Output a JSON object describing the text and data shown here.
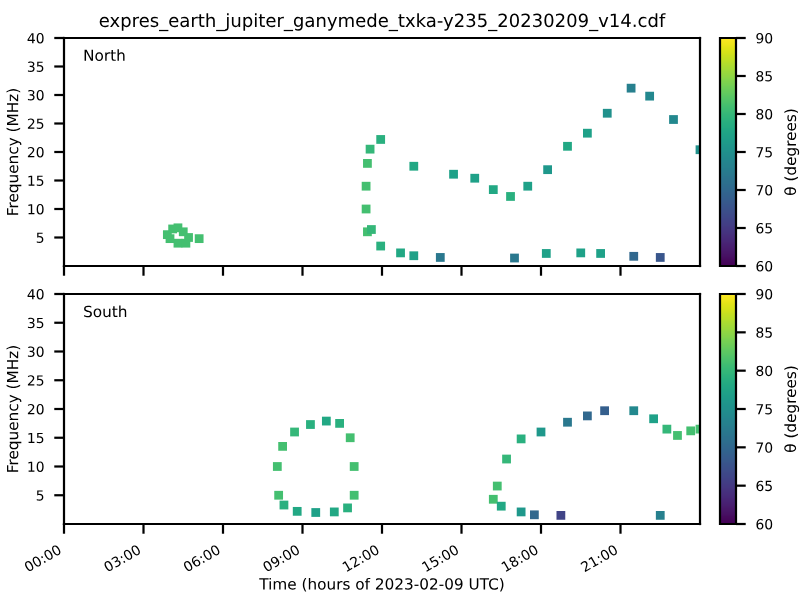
{
  "chart_data": [
    {
      "type": "scatter",
      "title": "expres_earth_jupiter_ganymede_txka-y235_20230209_v14.cdf",
      "ylabel": "Frequency (MHz)",
      "clabel": "θ (degrees)",
      "annotations": [
        "North"
      ],
      "marker": "square",
      "tick_labels": "y",
      "xlim": [
        0,
        24
      ],
      "xticks": [
        0,
        3,
        6,
        9,
        12,
        15,
        18,
        21
      ],
      "ylim": [
        0,
        40
      ],
      "yticks": [
        5,
        10,
        15,
        20,
        25,
        30,
        35,
        40
      ],
      "clim": [
        60,
        90
      ],
      "cticks": [
        60,
        65,
        70,
        75,
        80,
        85,
        90
      ],
      "series": [
        {
          "x": [
            3.9,
            4.1,
            4.3,
            4.5,
            4.7,
            5.1,
            4.3,
            4.0,
            4.6,
            11.45,
            11.4,
            11.4,
            11.45,
            11.55,
            11.95,
            13.2,
            14.7,
            15.5,
            16.2,
            16.85,
            17.5,
            18.25,
            19.0,
            19.75,
            20.5,
            21.4,
            22.1,
            23.0,
            24.0,
            11.6,
            11.95,
            12.7,
            13.2,
            14.2,
            17.0,
            18.2,
            19.5,
            20.25,
            21.5,
            22.5
          ],
          "values": [
            5.5,
            6.5,
            6.7,
            6.0,
            5.0,
            4.8,
            4.0,
            4.8,
            4.0,
            6,
            10,
            14,
            18,
            20.5,
            22.2,
            17.5,
            16.1,
            15.4,
            13.4,
            12.2,
            14,
            16.9,
            21,
            23.3,
            26.8,
            31.2,
            29.8,
            25.7,
            20.4,
            6.4,
            3.5,
            2.3,
            1.8,
            1.5,
            1.4,
            2.2,
            2.3,
            2.2,
            1.7,
            1.5
          ],
          "cvalues": [
            81,
            81,
            81,
            81,
            81,
            81,
            81,
            81,
            81,
            81,
            81,
            81,
            81,
            80,
            79,
            78,
            77,
            77,
            78,
            79,
            77,
            76,
            78,
            77,
            75,
            73,
            74,
            74,
            75,
            80,
            79,
            78,
            77,
            72,
            72,
            77,
            77,
            77,
            70,
            68
          ]
        }
      ]
    },
    {
      "type": "scatter",
      "xlabel": "Time (hours of 2023-02-09 UTC)",
      "ylabel": "Frequency (MHz)",
      "clabel": "θ (degrees)",
      "annotations": [
        "South"
      ],
      "marker": "square",
      "xlim": [
        0,
        24
      ],
      "xticks": [
        {
          "value": 0,
          "label": "00:00"
        },
        {
          "value": 3,
          "label": "03:00"
        },
        {
          "value": 6,
          "label": "06:00"
        },
        {
          "value": 9,
          "label": "09:00"
        },
        {
          "value": 12,
          "label": "12:00"
        },
        {
          "value": 15,
          "label": "15:00"
        },
        {
          "value": 18,
          "label": "18:00"
        },
        {
          "value": 21,
          "label": "21:00"
        }
      ],
      "ylim": [
        0,
        40
      ],
      "yticks": [
        5,
        10,
        15,
        20,
        25,
        30,
        35,
        40
      ],
      "clim": [
        60,
        90
      ],
      "cticks": [
        60,
        65,
        70,
        75,
        80,
        85,
        90
      ],
      "series": [
        {
          "x": [
            8.1,
            8.05,
            8.25,
            8.7,
            9.3,
            9.9,
            10.4,
            10.8,
            10.95,
            10.95,
            10.7,
            10.2,
            9.5,
            8.8,
            8.3,
            16.2,
            16.35,
            16.7,
            17.25,
            18.0,
            19.0,
            19.75,
            20.4,
            21.5,
            22.25,
            22.75,
            23.15,
            23.65,
            24.0,
            16.5,
            17.25,
            17.75,
            18.75,
            22.5
          ],
          "values": [
            5,
            10,
            13.5,
            16,
            17.3,
            17.9,
            17.5,
            15,
            10,
            5,
            2.8,
            2.1,
            2,
            2.2,
            3.3,
            4.3,
            6.6,
            11.3,
            14.8,
            16,
            17.7,
            18.8,
            19.7,
            19.7,
            18.3,
            16.5,
            15.4,
            16.2,
            16.5,
            3.1,
            2.1,
            1.6,
            1.5,
            1.5
          ],
          "cvalues": [
            81,
            81,
            81,
            80,
            79,
            78,
            79,
            81,
            81,
            81,
            79,
            78,
            77,
            78,
            79,
            81,
            81,
            80,
            79,
            76,
            72,
            70,
            69,
            74,
            77,
            80,
            81,
            81,
            81,
            78,
            76,
            70,
            66,
            73
          ]
        }
      ]
    }
  ]
}
